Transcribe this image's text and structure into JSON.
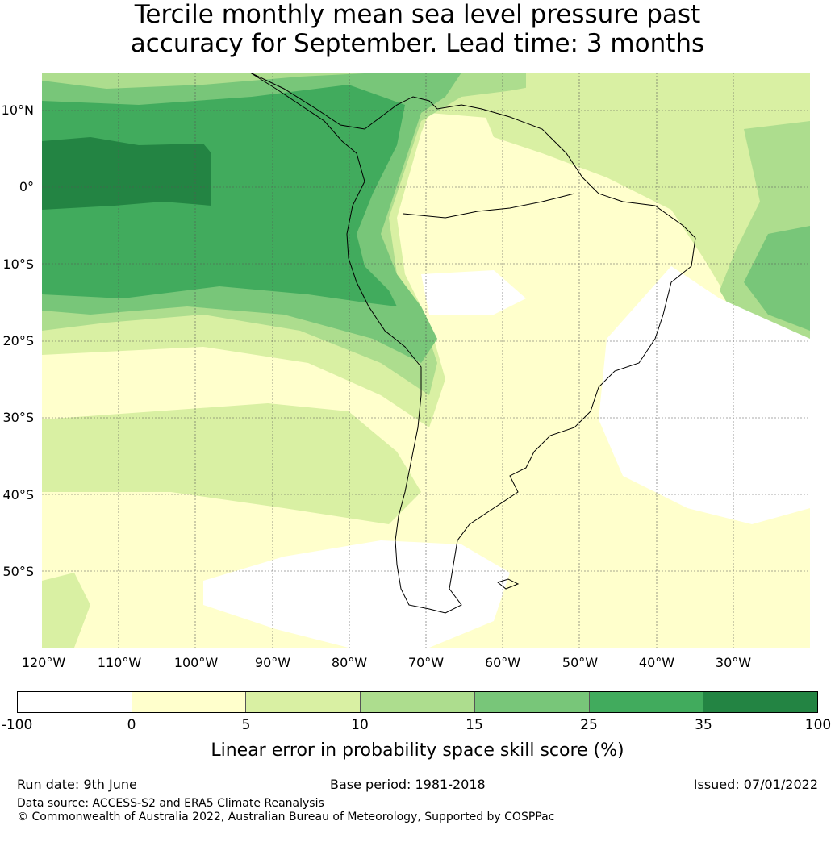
{
  "title": {
    "line1": "Tercile monthly mean sea level pressure past",
    "line2": "accuracy for September. Lead time: 3 months"
  },
  "map": {
    "latitude_labels": [
      "10°N",
      "0°",
      "10°S",
      "20°S",
      "30°S",
      "40°S",
      "50°S"
    ],
    "longitude_labels": [
      "120°W",
      "110°W",
      "100°W",
      "90°W",
      "80°W",
      "70°W",
      "60°W",
      "50°W",
      "40°W",
      "30°W"
    ],
    "extent": {
      "lon": [
        -120,
        -20
      ],
      "lat": [
        -60,
        15
      ]
    },
    "gridlines": true,
    "coastlines": true
  },
  "colorbar": {
    "ticks": [
      "-100",
      "0",
      "5",
      "10",
      "15",
      "25",
      "35",
      "100"
    ],
    "colors": [
      "#ffffff",
      "#ffffcc",
      "#d9f0a3",
      "#addd8e",
      "#78c679",
      "#41ab5d",
      "#238443"
    ],
    "label": "Linear error in probability space skill score (%)"
  },
  "footer": {
    "run_date": "Run date: 9th June",
    "base_period": "Base period: 1981-2018",
    "issued": "Issued: 07/01/2022",
    "data_source": "Data source: ACCESS-S2 and ERA5 Climate Reanalysis",
    "copyright": "© Commonwealth of Australia 2022, Australian Bureau of Meteorology, Supported by COSPPac"
  }
}
